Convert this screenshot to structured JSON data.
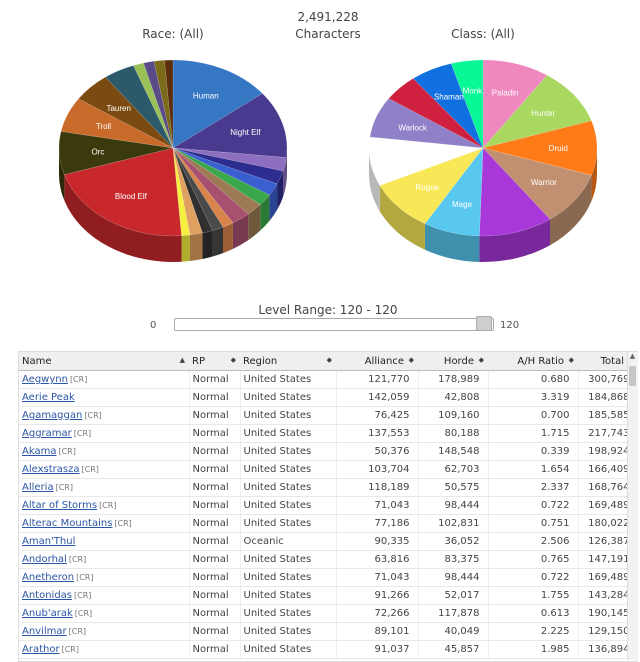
{
  "header": {
    "total": "2,491,228",
    "caption": "Characters",
    "race_title": "Race: (All)",
    "class_title": "Class: (All)"
  },
  "chart_data": [
    {
      "type": "pie",
      "title": "Race: (All)",
      "categories": [
        "Human",
        "Night Elf",
        "s3",
        "s4",
        "s5",
        "s6",
        "s7",
        "s8",
        "s9",
        "s10",
        "s11",
        "s12",
        "s13",
        "Blood Elf",
        "Orc",
        "Troll",
        "Tauren",
        "s18",
        "s19",
        "s20",
        "s21",
        "s22"
      ],
      "labels": [
        "Human",
        "Night Elf",
        "",
        "",
        "",
        "",
        "",
        "",
        "",
        "",
        "",
        "",
        "",
        "Blood Elf",
        "Orc",
        "Troll",
        "Tauren",
        "",
        "",
        "",
        "",
        ""
      ],
      "values": [
        14.5,
        12.5,
        2.5,
        2.5,
        2.3,
        2.2,
        2.4,
        2.7,
        1.6,
        1.6,
        1.5,
        1.8,
        1.2,
        21.5,
        8.0,
        6.5,
        5.5,
        4.5,
        1.5,
        1.5,
        1.5,
        1.2
      ],
      "colors": [
        "#3677c4",
        "#4a3a8f",
        "#8e6fbf",
        "#2d2d8f",
        "#3a5fcf",
        "#3aa84a",
        "#9b7a55",
        "#a85070",
        "#d9844a",
        "#4a4a4a",
        "#303030",
        "#e0a060",
        "#f5f040",
        "#c8282c",
        "#3a3a0c",
        "#c86a2a",
        "#7a4a10",
        "#2c5a6a",
        "#9ac058",
        "#5a4a88",
        "#7a6a1a",
        "#5c2e0e"
      ]
    },
    {
      "type": "pie",
      "title": "Class: (All)",
      "categories": [
        "Paladin",
        "Hunter",
        "Druid",
        "Warrior",
        "s5",
        "Mage",
        "Rogue",
        "Priest",
        "Warlock",
        "s10",
        "Shaman",
        "Monk"
      ],
      "labels": [
        "Paladin",
        "Hunter",
        "Druid",
        "Warrior",
        "",
        "Mage",
        "Rogue",
        "Priest",
        "Warlock",
        "",
        "Shaman",
        "Monk"
      ],
      "values": [
        9.5,
        10.5,
        10.0,
        10.0,
        10.5,
        8.0,
        9.5,
        9.0,
        7.5,
        5.0,
        6.0,
        4.5
      ],
      "colors": [
        "#f088c0",
        "#a8d860",
        "#ff7b18",
        "#c09070",
        "#a838d8",
        "#58c8f0",
        "#f8e858",
        "#ffffff",
        "#9080c8",
        "#d02040",
        "#1070e0",
        "#08f898"
      ]
    }
  ],
  "range": {
    "label": "Level Range: 120 - 120",
    "min": "0",
    "max": "120"
  },
  "table": {
    "columns": [
      {
        "label": "Name",
        "sort": "▲"
      },
      {
        "label": "RP",
        "sort": "◆"
      },
      {
        "label": "Region",
        "sort": "◆"
      },
      {
        "label": "Alliance",
        "sort": "◆"
      },
      {
        "label": "Horde",
        "sort": "◆"
      },
      {
        "label": "A/H Ratio",
        "sort": "◆"
      },
      {
        "label": "Total",
        "sort": "◆"
      }
    ],
    "rows": [
      {
        "name": "Aegwynn",
        "tag": "[CR]",
        "rp": "Normal",
        "region": "United States",
        "alliance": "121,770",
        "horde": "178,989",
        "ratio": "0.680",
        "total": "300,769"
      },
      {
        "name": "Aerie Peak",
        "tag": "",
        "rp": "Normal",
        "region": "United States",
        "alliance": "142,059",
        "horde": "42,808",
        "ratio": "3.319",
        "total": "184,868"
      },
      {
        "name": "Agamaggan",
        "tag": "[CR]",
        "rp": "Normal",
        "region": "United States",
        "alliance": "76,425",
        "horde": "109,160",
        "ratio": "0.700",
        "total": "185,585"
      },
      {
        "name": "Aggramar",
        "tag": "[CR]",
        "rp": "Normal",
        "region": "United States",
        "alliance": "137,553",
        "horde": "80,188",
        "ratio": "1.715",
        "total": "217,743"
      },
      {
        "name": "Akama",
        "tag": "[CR]",
        "rp": "Normal",
        "region": "United States",
        "alliance": "50,376",
        "horde": "148,548",
        "ratio": "0.339",
        "total": "198,924"
      },
      {
        "name": "Alexstrasza",
        "tag": "[CR]",
        "rp": "Normal",
        "region": "United States",
        "alliance": "103,704",
        "horde": "62,703",
        "ratio": "1.654",
        "total": "166,409"
      },
      {
        "name": "Alleria",
        "tag": "[CR]",
        "rp": "Normal",
        "region": "United States",
        "alliance": "118,189",
        "horde": "50,575",
        "ratio": "2.337",
        "total": "168,764"
      },
      {
        "name": "Altar of Storms",
        "tag": "[CR]",
        "rp": "Normal",
        "region": "United States",
        "alliance": "71,043",
        "horde": "98,444",
        "ratio": "0.722",
        "total": "169,489"
      },
      {
        "name": "Alterac Mountains",
        "tag": "[CR]",
        "rp": "Normal",
        "region": "United States",
        "alliance": "77,186",
        "horde": "102,831",
        "ratio": "0.751",
        "total": "180,022"
      },
      {
        "name": "Aman'Thul",
        "tag": "",
        "rp": "Normal",
        "region": "Oceanic",
        "alliance": "90,335",
        "horde": "36,052",
        "ratio": "2.506",
        "total": "126,387"
      },
      {
        "name": "Andorhal",
        "tag": "[CR]",
        "rp": "Normal",
        "region": "United States",
        "alliance": "63,816",
        "horde": "83,375",
        "ratio": "0.765",
        "total": "147,191"
      },
      {
        "name": "Anetheron",
        "tag": "[CR]",
        "rp": "Normal",
        "region": "United States",
        "alliance": "71,043",
        "horde": "98,444",
        "ratio": "0.722",
        "total": "169,489"
      },
      {
        "name": "Antonidas",
        "tag": "[CR]",
        "rp": "Normal",
        "region": "United States",
        "alliance": "91,266",
        "horde": "52,017",
        "ratio": "1.755",
        "total": "143,284"
      },
      {
        "name": "Anub'arak",
        "tag": "[CR]",
        "rp": "Normal",
        "region": "United States",
        "alliance": "72,266",
        "horde": "117,878",
        "ratio": "0.613",
        "total": "190,145"
      },
      {
        "name": "Anvilmar",
        "tag": "[CR]",
        "rp": "Normal",
        "region": "United States",
        "alliance": "89,101",
        "horde": "40,049",
        "ratio": "2.225",
        "total": "129,150"
      },
      {
        "name": "Arathor",
        "tag": "[CR]",
        "rp": "Normal",
        "region": "United States",
        "alliance": "91,037",
        "horde": "45,857",
        "ratio": "1.985",
        "total": "136,894"
      }
    ]
  }
}
